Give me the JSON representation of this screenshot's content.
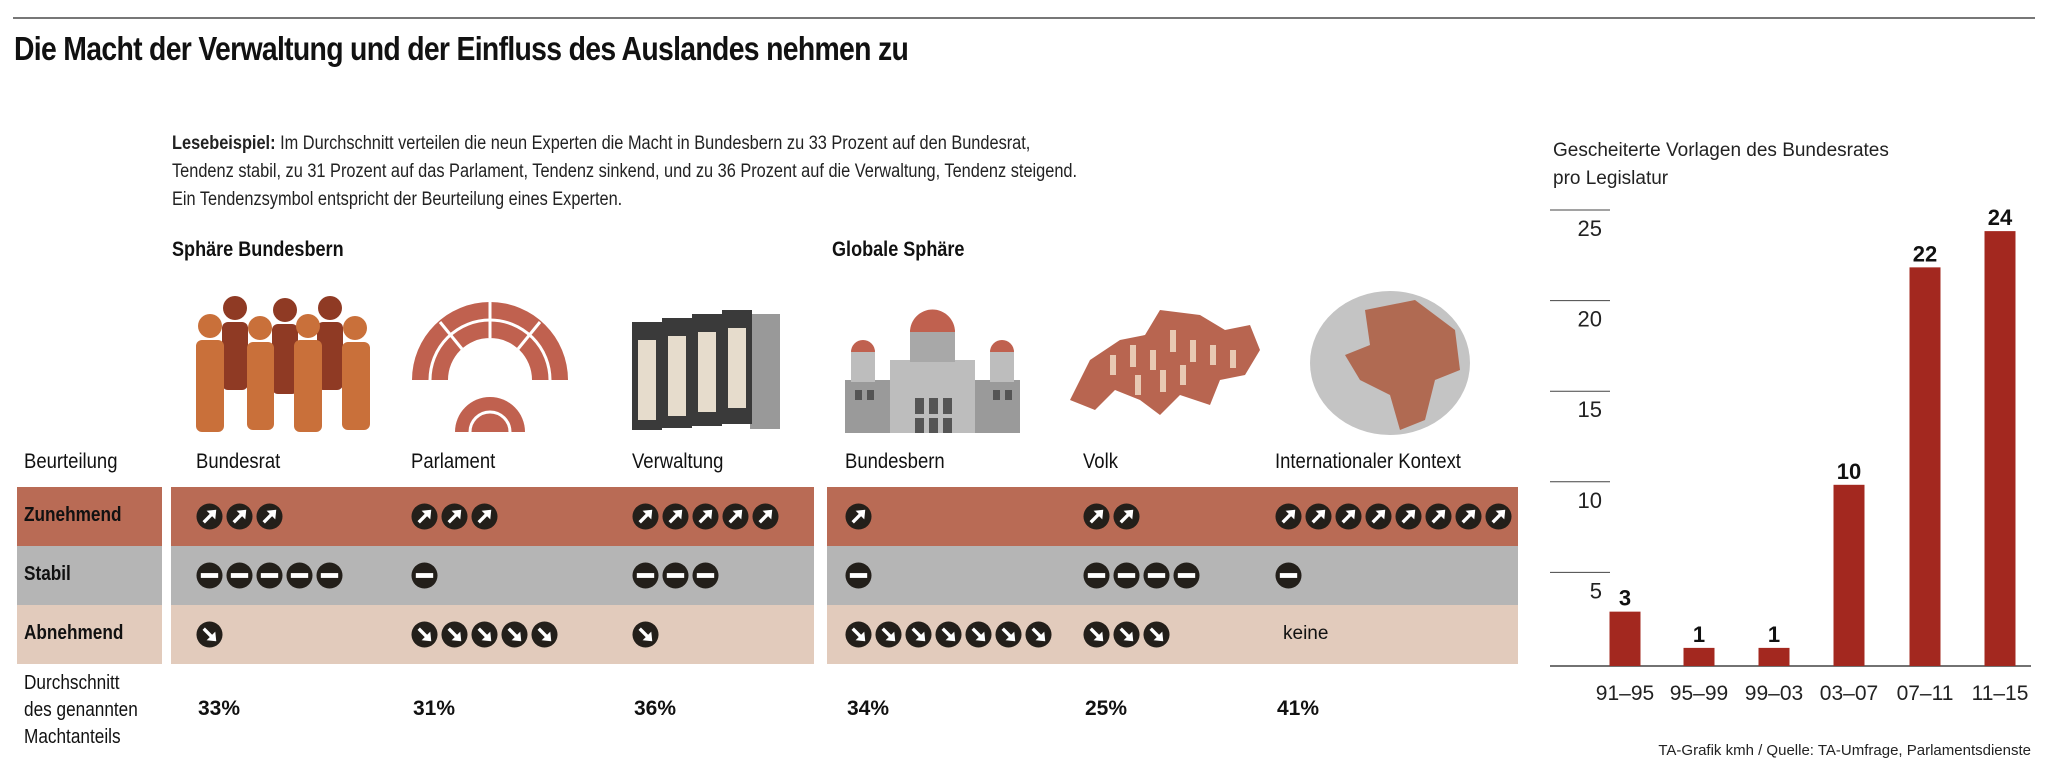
{
  "title": "Die Macht der Verwaltung und der Einfluss des Auslandes nehmen zu",
  "intro": {
    "bold": "Lesebeispiel:",
    "line1": " Im Durchschnitt verteilen die neun Experten die Macht in Bundesbern zu 33 Prozent auf den Bundesrat,",
    "line2": "Tendenz stabil, zu 31 Prozent auf das Parlament, Tendenz sinkend, und zu 36 Prozent auf die Verwaltung, Tendenz steigend.",
    "line3": "Ein Tendenzsymbol entspricht der Beurteilung eines Experten."
  },
  "sections": {
    "left": "Sphäre Bundesbern",
    "right": "Globale Sphäre"
  },
  "table": {
    "header": "Beurteilung",
    "rows": [
      {
        "key": "up",
        "label": "Zunehmend",
        "color": "#b96b55"
      },
      {
        "key": "flat",
        "label": "Stabil",
        "color": "#b5b5b5"
      },
      {
        "key": "down",
        "label": "Abnehmend",
        "color": "#e2cbbc"
      }
    ],
    "avg_label": [
      "Durchschnitt",
      "des genannten",
      "Machtanteils"
    ],
    "none_label": "keine",
    "columns": [
      {
        "name": "Bundesrat",
        "icon": "people-icon",
        "up": 3,
        "flat": 5,
        "down": 1,
        "avg": "33%"
      },
      {
        "name": "Parlament",
        "icon": "parliament-icon",
        "up": 3,
        "flat": 1,
        "down": 5,
        "avg": "31%"
      },
      {
        "name": "Verwaltung",
        "icon": "binders-icon",
        "up": 5,
        "flat": 3,
        "down": 1,
        "avg": "36%"
      },
      {
        "name": "Bundesbern",
        "icon": "federal-palace-icon",
        "up": 1,
        "flat": 1,
        "down": 7,
        "avg": "34%"
      },
      {
        "name": "Volk",
        "icon": "swiss-map-icon",
        "up": 2,
        "flat": 4,
        "down": 3,
        "avg": "25%"
      },
      {
        "name": "Internationaler Kontext",
        "icon": "globe-icon",
        "up": 8,
        "flat": 1,
        "down": 0,
        "avg": "41%"
      }
    ]
  },
  "chart_data": {
    "type": "bar",
    "title": "Gescheiterte Vorlagen des Bundesrates pro Legislatur",
    "title_lines": [
      "Gescheiterte Vorlagen des Bundesrates",
      "pro Legislatur"
    ],
    "categories": [
      "91–95",
      "95–99",
      "99–03",
      "03–07",
      "07–11",
      "11–15"
    ],
    "values": [
      3,
      1,
      1,
      10,
      22,
      24
    ],
    "ylim": [
      0,
      25
    ],
    "yticks": [
      5,
      10,
      15,
      20,
      25
    ],
    "bar_color": "#a3281f",
    "xlabel": "",
    "ylabel": ""
  },
  "footer": "TA-Grafik kmh / Quelle:  TA-Umfrage, Parlamentsdienste"
}
